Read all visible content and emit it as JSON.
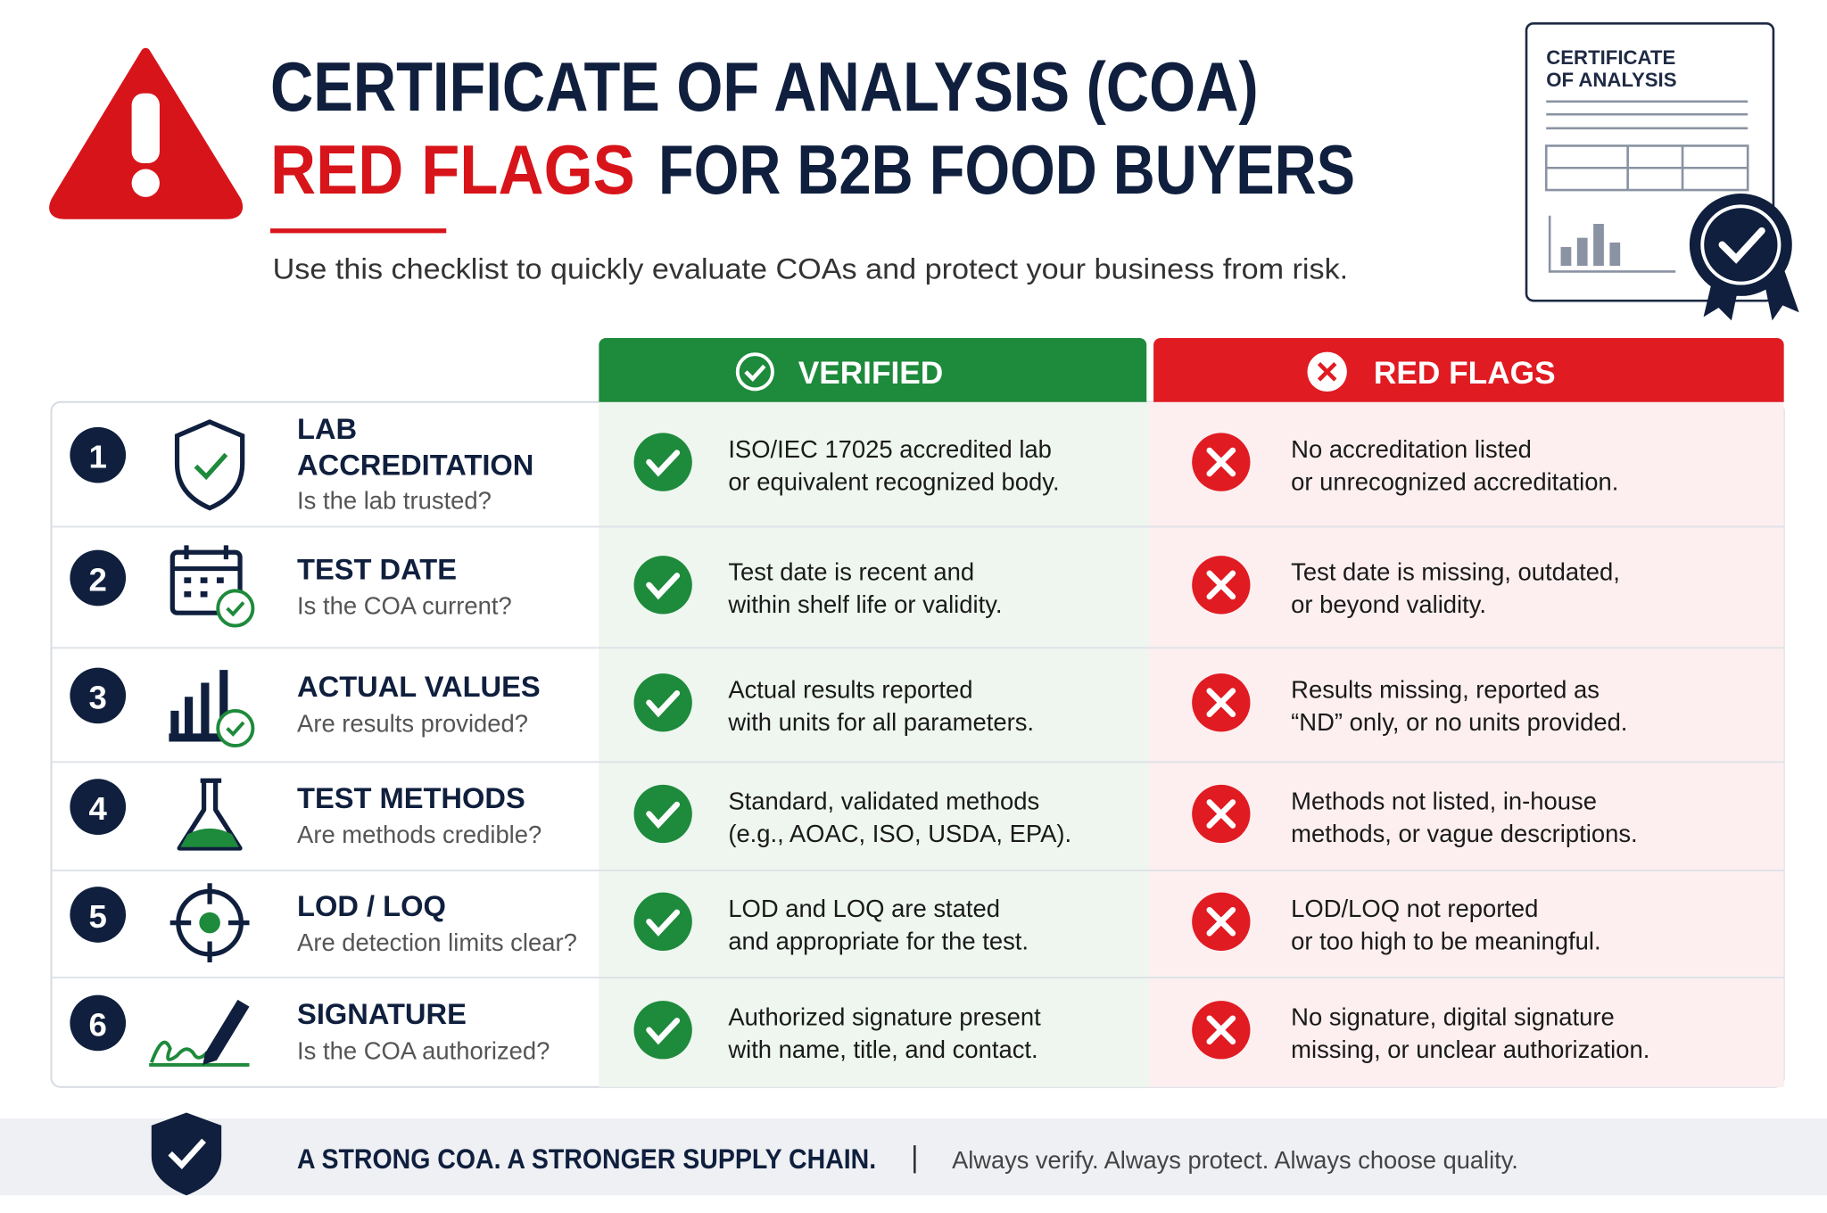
{
  "header": {
    "title_line1": "CERTIFICATE OF ANALYSIS (COA)",
    "title_red": "RED FLAGS",
    "title_rest": "FOR B2B FOOD BUYERS",
    "subtitle": "Use this checklist to quickly evaluate COAs and protect your business from risk."
  },
  "doc_icon": {
    "line1": "CERTIFICATE",
    "line2": "OF ANALYSIS"
  },
  "table": {
    "columns": {
      "verified": "VERIFIED",
      "red_flags": "RED FLAGS"
    },
    "rows": [
      {
        "number": "1",
        "title": [
          "LAB",
          "ACCREDITATION"
        ],
        "question": "Is the lab trusted?",
        "verified": [
          "ISO/IEC 17025 accredited lab",
          "or equivalent recognized body."
        ],
        "red_flag": [
          "No accreditation listed",
          "or unrecognized accreditation."
        ]
      },
      {
        "number": "2",
        "title": [
          "TEST DATE"
        ],
        "question": "Is the COA current?",
        "verified": [
          "Test date is recent and",
          "within shelf life or validity."
        ],
        "red_flag": [
          "Test date is missing, outdated,",
          "or beyond validity."
        ]
      },
      {
        "number": "3",
        "title": [
          "ACTUAL VALUES"
        ],
        "question": "Are results provided?",
        "verified": [
          "Actual results reported",
          "with units for all parameters."
        ],
        "red_flag": [
          "Results missing, reported as",
          "“ND” only, or no units provided."
        ]
      },
      {
        "number": "4",
        "title": [
          "TEST METHODS"
        ],
        "question": "Are methods credible?",
        "verified": [
          "Standard, validated methods",
          "(e.g., AOAC, ISO, USDA, EPA)."
        ],
        "red_flag": [
          "Methods not listed, in-house",
          "methods, or vague descriptions."
        ]
      },
      {
        "number": "5",
        "title": [
          "LOD / LOQ"
        ],
        "question": "Are detection limits clear?",
        "verified": [
          "LOD and LOQ are stated",
          "and appropriate for the test."
        ],
        "red_flag": [
          "LOD/LOQ not reported",
          "or too high to be meaningful."
        ]
      },
      {
        "number": "6",
        "title": [
          "SIGNATURE"
        ],
        "question": "Is the COA authorized?",
        "verified": [
          "Authorized signature present",
          "with name, title, and contact."
        ],
        "red_flag": [
          "No signature, digital signature",
          "missing, or unclear authorization."
        ]
      }
    ]
  },
  "footer": {
    "tagline": "A STRONG COA. A STRONGER SUPPLY CHAIN.",
    "slogan": "Always verify. Always protect. Always choose quality."
  }
}
